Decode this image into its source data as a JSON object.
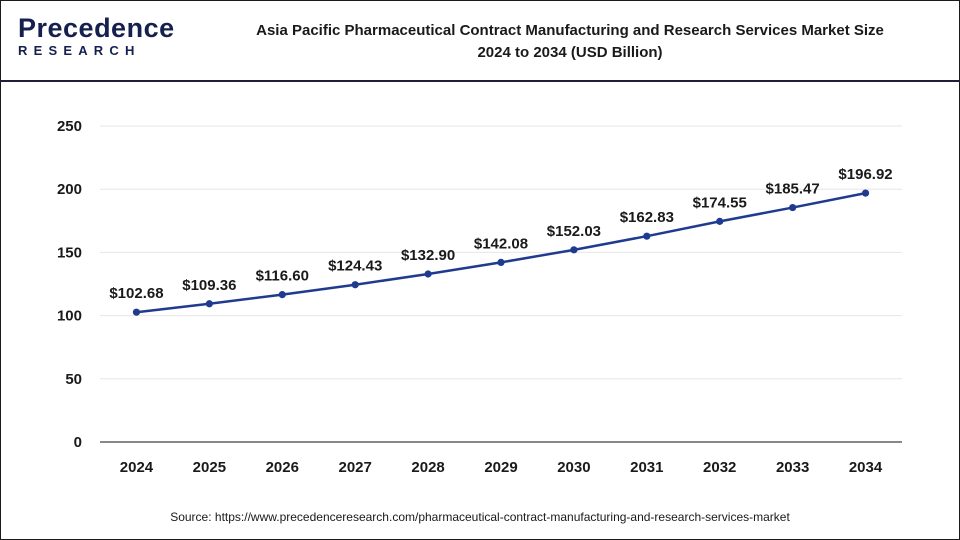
{
  "header": {
    "logo_top": "Precedence",
    "logo_bottom": "RESEARCH",
    "title_line1": "Asia Pacific Pharmaceutical Contract Manufacturing and Research Services Market Size",
    "title_line2": "2024 to 2034 (USD Billion)"
  },
  "source": "Source: https://www.precedenceresearch.com/pharmaceutical-contract-manufacturing-and-research-services-market",
  "colors": {
    "line": "#1f3b8f",
    "marker": "#1f3b8f",
    "grid": "#e6e6e6",
    "axis": "#404040"
  },
  "chart_data": {
    "type": "line",
    "title": "Asia Pacific Pharmaceutical Contract Manufacturing and Research Services Market Size 2024 to 2034 (USD Billion)",
    "xlabel": "",
    "ylabel": "",
    "categories": [
      "2024",
      "2025",
      "2026",
      "2027",
      "2028",
      "2029",
      "2030",
      "2031",
      "2032",
      "2033",
      "2034"
    ],
    "series": [
      {
        "values": [
          102.68,
          109.36,
          116.6,
          124.43,
          132.9,
          142.08,
          152.03,
          162.83,
          174.55,
          185.47,
          196.92
        ],
        "labels": [
          "$102.68",
          "$109.36",
          "$116.60",
          "$124.43",
          "$132.90",
          "$142.08",
          "$152.03",
          "$162.83",
          "$174.55",
          "$185.47",
          "$196.92"
        ]
      }
    ],
    "ylim": [
      0,
      250
    ],
    "yticks": [
      0,
      50,
      100,
      150,
      200,
      250
    ],
    "grid": true,
    "legend": "none"
  }
}
